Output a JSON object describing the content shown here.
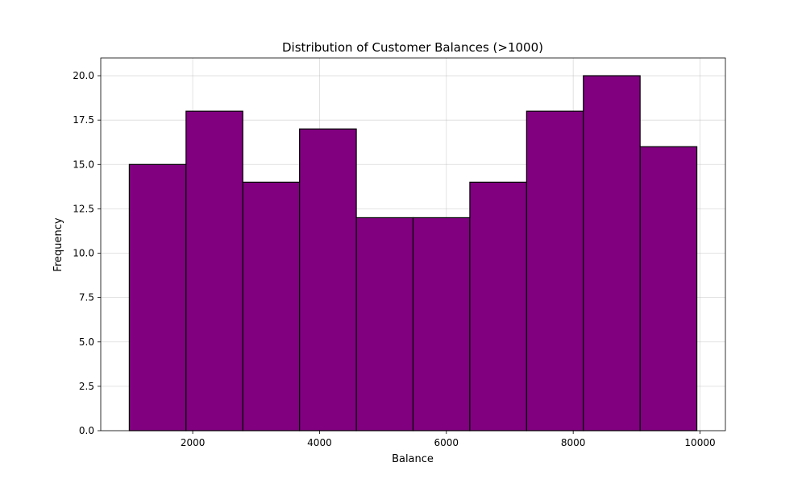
{
  "chart_data": {
    "type": "bar",
    "title": "Distribution of Customer Balances (>1000)",
    "xlabel": "Balance",
    "ylabel": "Frequency",
    "bin_edges": [
      1000,
      1895,
      2790,
      3685,
      4580,
      5475,
      6370,
      7265,
      8160,
      9055,
      9950
    ],
    "values": [
      15,
      18,
      14,
      17,
      12,
      12,
      14,
      18,
      20,
      16
    ],
    "xlim": [
      550,
      10400
    ],
    "ylim": [
      0,
      21
    ],
    "xticks": [
      2000,
      4000,
      6000,
      8000,
      10000
    ],
    "yticks": [
      0.0,
      2.5,
      5.0,
      7.5,
      10.0,
      12.5,
      15.0,
      17.5,
      20.0
    ],
    "grid": true,
    "bar_color": "#800080",
    "edge_color": "#000000"
  }
}
